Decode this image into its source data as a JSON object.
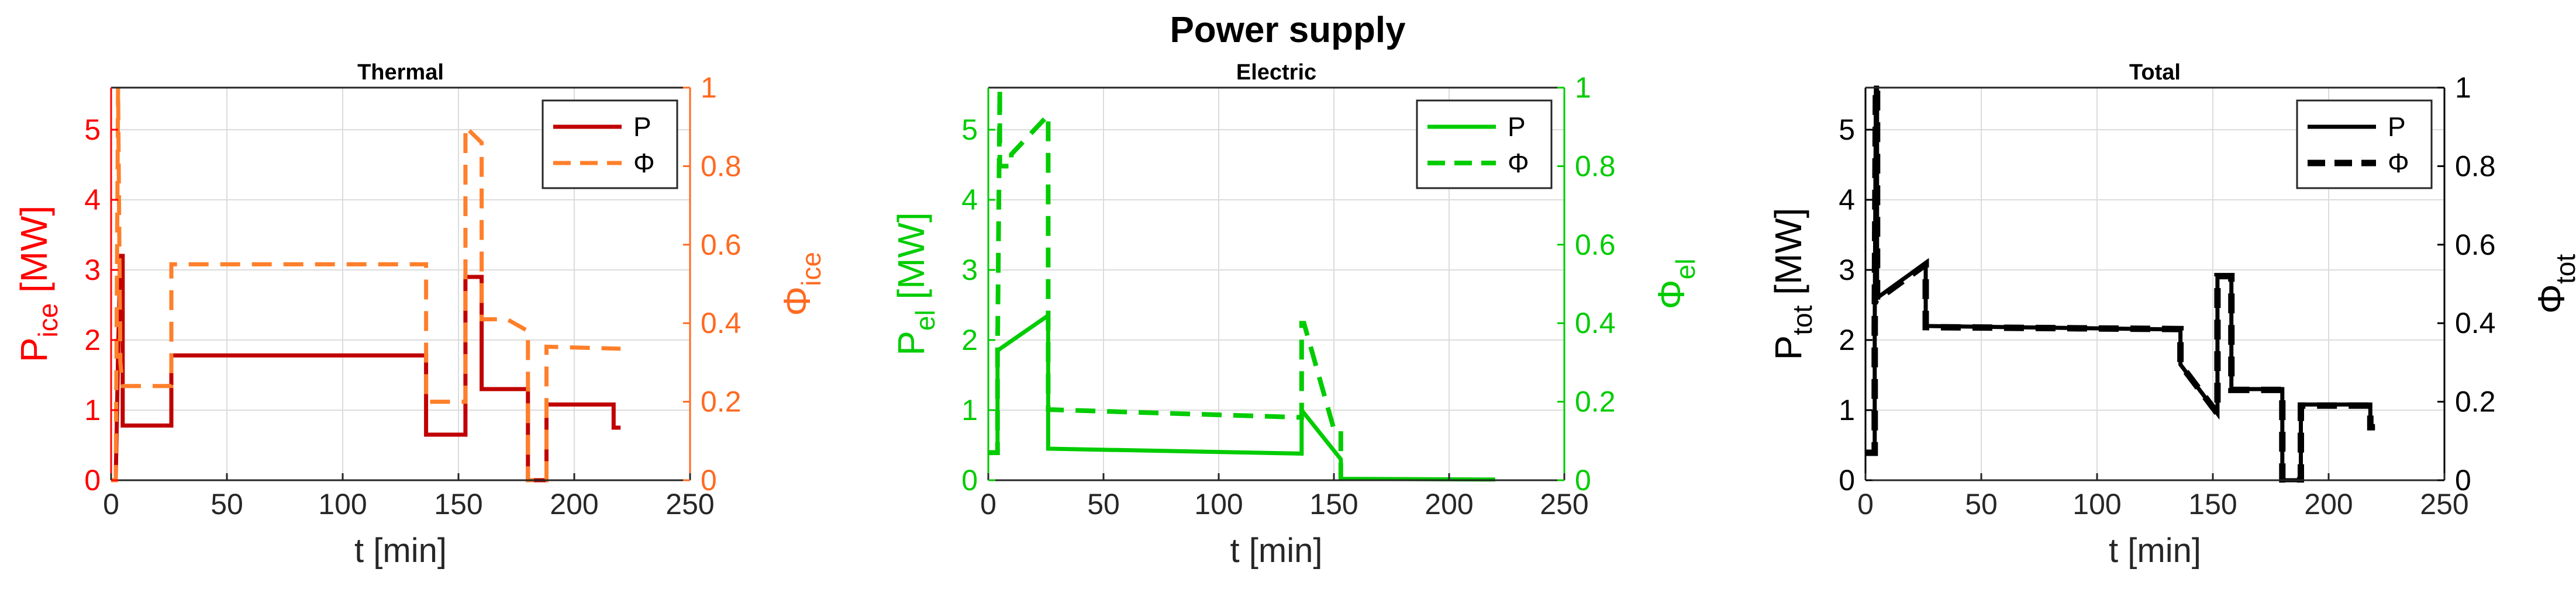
{
  "suptitle": "Power supply",
  "colors": {
    "ice": "#C00000",
    "ice_left_axis": "#FF0000",
    "ice_right_axis": "#FF6A21",
    "ice_phi": "#FF7F2A",
    "el": "#00CC00",
    "el_axis": "#00CC00",
    "tot": "#000000",
    "grid": "#DCDCDC"
  },
  "chart_data": [
    {
      "type": "line",
      "title": "Thermal",
      "xlabel": "t [min]",
      "ylabel_left": {
        "base": "P",
        "sub": "ice",
        "tail": " [MW]"
      },
      "ylabel_right": {
        "base": "Φ",
        "sub": "ice",
        "tail": ""
      },
      "xlim": [
        0,
        250
      ],
      "xticks": [
        0,
        50,
        100,
        150,
        200,
        250
      ],
      "ylim_left": [
        0,
        5.6
      ],
      "yticks_left": [
        0,
        1,
        2,
        3,
        4,
        5
      ],
      "ylim_right": [
        0,
        1
      ],
      "yticks_right": [
        0,
        0.2,
        0.4,
        0.6,
        0.8,
        1
      ],
      "grid": true,
      "legend": {
        "position": "top-right",
        "entries": [
          "P",
          "Φ"
        ]
      },
      "series": [
        {
          "name": "P",
          "axis": "left",
          "style": "solid",
          "x": [
            0,
            2,
            3,
            4,
            5,
            5,
            26,
            26,
            136,
            136,
            153,
            153,
            160,
            160,
            180,
            180,
            188,
            188,
            217,
            217,
            220
          ],
          "y": [
            0,
            0,
            1.8,
            3.2,
            3.2,
            0.78,
            0.78,
            1.78,
            1.78,
            0.65,
            0.65,
            2.9,
            2.9,
            1.3,
            1.3,
            0,
            0,
            1.08,
            1.08,
            0.75,
            0.75
          ]
        },
        {
          "name": "Φ",
          "axis": "right",
          "style": "dashed",
          "x": [
            0,
            2,
            3,
            4,
            5,
            5,
            26,
            26,
            136,
            136,
            153,
            153,
            160,
            160,
            171,
            171,
            180,
            180,
            188,
            188,
            220
          ],
          "y": [
            0,
            0,
            1.0,
            0.3,
            0.24,
            0.24,
            0.24,
            0.55,
            0.55,
            0.2,
            0.2,
            0.9,
            0.86,
            0.41,
            0.41,
            0.41,
            0.38,
            0,
            0,
            0.34,
            0.335
          ]
        }
      ]
    },
    {
      "type": "line",
      "title": "Electric",
      "xlabel": "t [min]",
      "ylabel_left": {
        "base": "P",
        "sub": "el",
        "tail": " [MW]"
      },
      "ylabel_right": {
        "base": "Φ",
        "sub": "el",
        "tail": ""
      },
      "xlim": [
        0,
        250
      ],
      "xticks": [
        0,
        50,
        100,
        150,
        200,
        250
      ],
      "ylim_left": [
        0,
        5.6
      ],
      "yticks_left": [
        0,
        1,
        2,
        3,
        4,
        5
      ],
      "ylim_right": [
        0,
        1
      ],
      "yticks_right": [
        0,
        0.2,
        0.4,
        0.6,
        0.8,
        1
      ],
      "grid": true,
      "legend": {
        "position": "top-right",
        "entries": [
          "P",
          "Φ"
        ]
      },
      "series": [
        {
          "name": "P",
          "axis": "left",
          "style": "solid",
          "x": [
            0,
            4,
            4,
            26,
            26,
            136,
            136,
            153,
            153,
            220
          ],
          "y": [
            0.4,
            0.4,
            1.85,
            2.35,
            0.45,
            0.38,
            1.0,
            0.3,
            0.02,
            0.01
          ]
        },
        {
          "name": "Φ",
          "axis": "right",
          "style": "dashed",
          "x": [
            0,
            4,
            4,
            5,
            5,
            10,
            10,
            26,
            26,
            136,
            136,
            137,
            150,
            153,
            153
          ],
          "y": [
            0.07,
            0.07,
            0.33,
            1.0,
            0.8,
            0.8,
            0.83,
            0.93,
            0.18,
            0.16,
            0.4,
            0.4,
            0.13,
            0.13,
            0
          ]
        }
      ]
    },
    {
      "type": "line",
      "title": "Total",
      "xlabel": "t [min]",
      "ylabel_left": {
        "base": "P",
        "sub": "tot",
        "tail": " [MW]"
      },
      "ylabel_right": {
        "base": "Φ",
        "sub": "tot",
        "tail": ""
      },
      "xlim": [
        0,
        250
      ],
      "xticks": [
        0,
        50,
        100,
        150,
        200,
        250
      ],
      "ylim_left": [
        0,
        5.6
      ],
      "yticks_left": [
        0,
        1,
        2,
        3,
        4,
        5
      ],
      "ylim_right": [
        0,
        1
      ],
      "yticks_right": [
        0,
        0.2,
        0.4,
        0.6,
        0.8,
        1
      ],
      "grid": true,
      "legend": {
        "position": "top-right",
        "entries": [
          "P",
          "Φ"
        ]
      },
      "series": [
        {
          "name": "P",
          "axis": "left",
          "style": "solid",
          "x": [
            0,
            4,
            4,
            4.5,
            5,
            5,
            26,
            26,
            136,
            136,
            152,
            152,
            153,
            153,
            158,
            158,
            180,
            180,
            188,
            188,
            218,
            218,
            220
          ],
          "y": [
            0.4,
            0.4,
            2.2,
            5.6,
            5.6,
            2.6,
            3.1,
            2.2,
            2.15,
            1.65,
            0.95,
            2.9,
            2.9,
            2.9,
            2.9,
            1.3,
            1.3,
            0,
            0,
            1.08,
            1.08,
            0.75,
            0.75
          ]
        },
        {
          "name": "Φ",
          "axis": "right",
          "style": "dashed",
          "x": [
            0,
            4,
            4,
            4.5,
            5,
            5,
            26,
            26,
            136,
            136,
            152,
            152,
            158,
            158,
            180,
            180,
            188,
            188,
            218,
            218,
            220
          ],
          "y": [
            0.07,
            0.07,
            0.39,
            1.0,
            1.0,
            0.46,
            0.55,
            0.39,
            0.385,
            0.295,
            0.17,
            0.52,
            0.52,
            0.23,
            0.23,
            0,
            0,
            0.19,
            0.19,
            0.135,
            0.135
          ]
        }
      ]
    }
  ]
}
